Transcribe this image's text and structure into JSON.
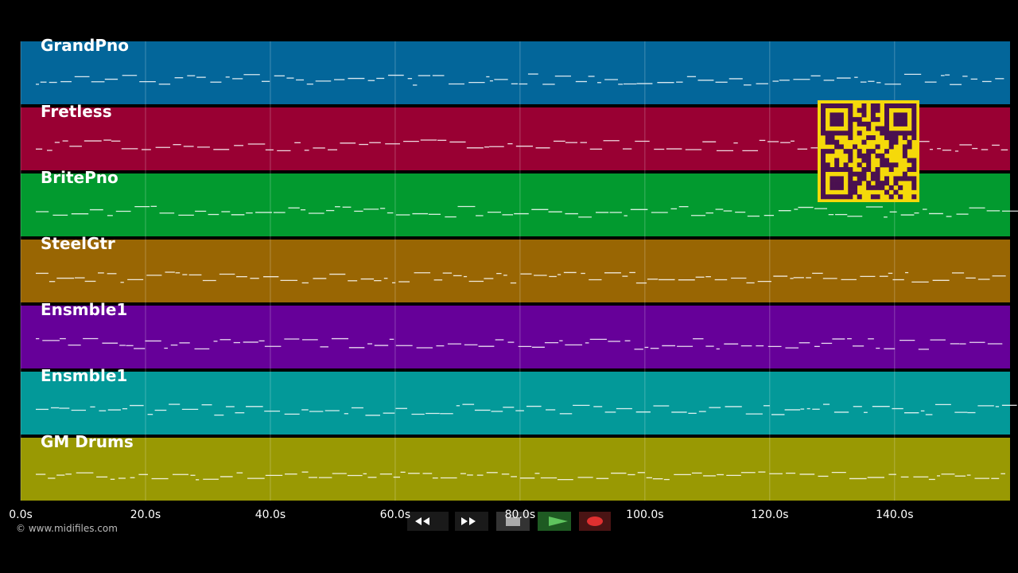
{
  "tracks": [
    {
      "name": "GrandPno",
      "color": "#03669a"
    },
    {
      "name": "Fretless",
      "color": "#990033"
    },
    {
      "name": "BritePno",
      "color": "#029a2f"
    },
    {
      "name": "SteelGtr",
      "color": "#996603"
    },
    {
      "name": "Ensmble1",
      "color": "#660099"
    },
    {
      "name": "Ensmble1",
      "color": "#039999"
    },
    {
      "name": "GM Drums",
      "color": "#999903"
    }
  ],
  "timeline": {
    "range": [
      0,
      158.5
    ],
    "ticks": [
      {
        "value": 0,
        "label": "0.0s"
      },
      {
        "value": 20,
        "label": "20.0s"
      },
      {
        "value": 40,
        "label": "40.0s"
      },
      {
        "value": 60,
        "label": "60.0s"
      },
      {
        "value": 80,
        "label": "80.0s"
      },
      {
        "value": 100,
        "label": "100.0s"
      },
      {
        "value": 120,
        "label": "120.0s"
      },
      {
        "value": 140,
        "label": "140.0s"
      }
    ]
  },
  "footer": {
    "copyright": "© www.midifiles.com"
  }
}
